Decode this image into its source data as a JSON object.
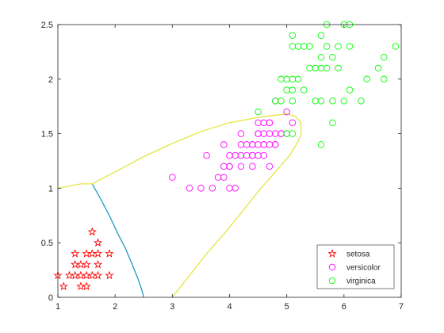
{
  "chart_data": {
    "type": "scatter",
    "title": "",
    "xlabel": "",
    "ylabel": "",
    "xlim": [
      1,
      7
    ],
    "ylim": [
      0,
      2.5
    ],
    "xticks": [
      "1",
      "2",
      "3",
      "4",
      "5",
      "6",
      "7"
    ],
    "yticks": [
      "0",
      "0.5",
      "1",
      "1.5",
      "2",
      "2.5"
    ],
    "grid": false,
    "box": true,
    "legend_position": "bottom-right",
    "series": [
      {
        "name": "setosa",
        "marker": "star",
        "color": "#ff0000",
        "points": [
          [
            1.0,
            0.2
          ],
          [
            1.1,
            0.1
          ],
          [
            1.2,
            0.2
          ],
          [
            1.3,
            0.2
          ],
          [
            1.3,
            0.3
          ],
          [
            1.3,
            0.4
          ],
          [
            1.4,
            0.1
          ],
          [
            1.4,
            0.2
          ],
          [
            1.4,
            0.3
          ],
          [
            1.5,
            0.1
          ],
          [
            1.5,
            0.2
          ],
          [
            1.5,
            0.3
          ],
          [
            1.5,
            0.4
          ],
          [
            1.6,
            0.2
          ],
          [
            1.6,
            0.4
          ],
          [
            1.6,
            0.6
          ],
          [
            1.7,
            0.2
          ],
          [
            1.7,
            0.3
          ],
          [
            1.7,
            0.4
          ],
          [
            1.7,
            0.5
          ],
          [
            1.9,
            0.2
          ],
          [
            1.9,
            0.4
          ]
        ]
      },
      {
        "name": "versicolor",
        "marker": "circle",
        "color": "#ff00ff",
        "points": [
          [
            3.0,
            1.1
          ],
          [
            3.3,
            1.0
          ],
          [
            3.5,
            1.0
          ],
          [
            3.6,
            1.3
          ],
          [
            3.7,
            1.0
          ],
          [
            3.8,
            1.1
          ],
          [
            3.9,
            1.1
          ],
          [
            3.9,
            1.2
          ],
          [
            3.9,
            1.4
          ],
          [
            4.0,
            1.0
          ],
          [
            4.0,
            1.2
          ],
          [
            4.0,
            1.3
          ],
          [
            4.1,
            1.0
          ],
          [
            4.1,
            1.3
          ],
          [
            4.2,
            1.2
          ],
          [
            4.2,
            1.3
          ],
          [
            4.2,
            1.5
          ],
          [
            4.3,
            1.3
          ],
          [
            4.4,
            1.2
          ],
          [
            4.4,
            1.3
          ],
          [
            4.4,
            1.4
          ],
          [
            4.5,
            1.3
          ],
          [
            4.5,
            1.5
          ],
          [
            4.6,
            1.3
          ],
          [
            4.6,
            1.4
          ],
          [
            4.6,
            1.5
          ],
          [
            4.7,
            1.2
          ],
          [
            4.7,
            1.4
          ],
          [
            4.7,
            1.5
          ],
          [
            4.7,
            1.6
          ],
          [
            4.8,
            1.4
          ],
          [
            4.8,
            1.8
          ],
          [
            4.9,
            1.5
          ],
          [
            5.0,
            1.7
          ],
          [
            5.1,
            1.6
          ],
          [
            4.5,
            1.5
          ],
          [
            4.6,
            1.4
          ],
          [
            4.4,
            1.4
          ],
          [
            4.8,
            1.4
          ],
          [
            4.9,
            1.5
          ],
          [
            5.0,
            1.5
          ],
          [
            4.8,
            1.5
          ],
          [
            4.3,
            1.4
          ],
          [
            4.5,
            1.4
          ],
          [
            4.7,
            1.6
          ],
          [
            4.2,
            1.4
          ],
          [
            4.5,
            1.6
          ],
          [
            4.0,
            1.2
          ],
          [
            4.6,
            1.6
          ],
          [
            4.4,
            1.3
          ]
        ]
      },
      {
        "name": "virginica",
        "marker": "circle",
        "color": "#00ff00",
        "points": [
          [
            4.5,
            1.7
          ],
          [
            4.8,
            1.8
          ],
          [
            4.9,
            1.8
          ],
          [
            4.9,
            2.0
          ],
          [
            5.0,
            1.5
          ],
          [
            5.0,
            1.9
          ],
          [
            5.0,
            2.0
          ],
          [
            5.1,
            1.5
          ],
          [
            5.1,
            1.8
          ],
          [
            5.1,
            1.9
          ],
          [
            5.1,
            2.0
          ],
          [
            5.1,
            2.3
          ],
          [
            5.1,
            2.4
          ],
          [
            5.2,
            2.0
          ],
          [
            5.2,
            2.3
          ],
          [
            5.3,
            1.9
          ],
          [
            5.3,
            2.3
          ],
          [
            5.4,
            2.1
          ],
          [
            5.4,
            2.3
          ],
          [
            5.5,
            1.8
          ],
          [
            5.5,
            2.1
          ],
          [
            5.6,
            1.4
          ],
          [
            5.6,
            1.8
          ],
          [
            5.6,
            2.1
          ],
          [
            5.6,
            2.2
          ],
          [
            5.6,
            2.4
          ],
          [
            5.7,
            2.1
          ],
          [
            5.7,
            2.3
          ],
          [
            5.7,
            2.5
          ],
          [
            5.8,
            1.6
          ],
          [
            5.8,
            1.8
          ],
          [
            5.8,
            2.2
          ],
          [
            5.9,
            2.1
          ],
          [
            5.9,
            2.3
          ],
          [
            6.0,
            1.8
          ],
          [
            6.0,
            2.5
          ],
          [
            6.1,
            1.9
          ],
          [
            6.1,
            2.3
          ],
          [
            6.1,
            2.5
          ],
          [
            6.3,
            1.8
          ],
          [
            6.4,
            2.0
          ],
          [
            6.6,
            2.1
          ],
          [
            6.7,
            2.0
          ],
          [
            6.7,
            2.2
          ],
          [
            6.9,
            2.3
          ]
        ]
      }
    ],
    "boundaries": [
      {
        "pair": "setosa-versicolor",
        "color": "#1f9bbf",
        "points": [
          [
            1.6,
            1.04
          ],
          [
            1.75,
            0.9
          ],
          [
            1.9,
            0.75
          ],
          [
            2.05,
            0.58
          ],
          [
            2.18,
            0.45
          ],
          [
            2.3,
            0.3
          ],
          [
            2.4,
            0.17
          ],
          [
            2.47,
            0.06
          ],
          [
            2.5,
            0
          ]
        ]
      },
      {
        "pair": "versicolor-virginica",
        "color": "#e5e542",
        "points": [
          [
            1.0,
            1.0
          ],
          [
            1.2,
            1.02
          ],
          [
            1.4,
            1.04
          ],
          [
            1.6,
            1.04
          ],
          [
            2.0,
            1.15
          ],
          [
            2.5,
            1.29
          ],
          [
            3.0,
            1.41
          ],
          [
            3.5,
            1.52
          ],
          [
            4.0,
            1.6
          ],
          [
            4.5,
            1.65
          ],
          [
            4.8,
            1.67
          ],
          [
            5.0,
            1.68
          ],
          [
            5.15,
            1.66
          ],
          [
            5.25,
            1.6
          ],
          [
            5.25,
            1.5
          ],
          [
            5.2,
            1.43
          ],
          [
            5.05,
            1.3
          ],
          [
            4.8,
            1.15
          ],
          [
            4.5,
            0.97
          ],
          [
            4.2,
            0.77
          ],
          [
            3.9,
            0.58
          ],
          [
            3.6,
            0.4
          ],
          [
            3.3,
            0.2
          ],
          [
            3.0,
            0
          ]
        ]
      }
    ]
  }
}
